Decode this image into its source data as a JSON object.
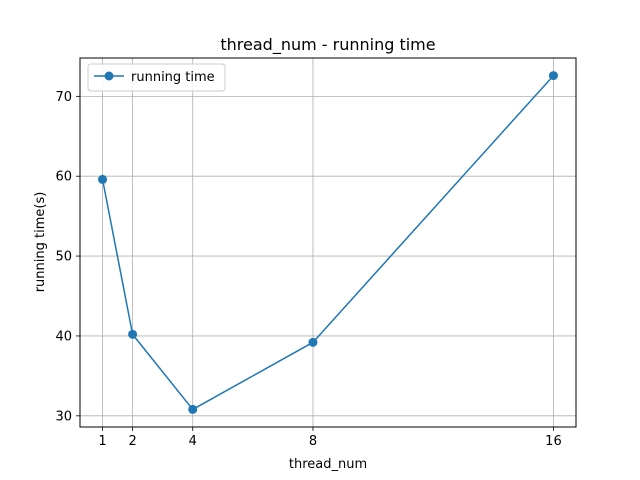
{
  "chart_data": {
    "type": "line",
    "title": "thread_num - running time",
    "xlabel": "thread_num",
    "ylabel": "running time(s)",
    "x": [
      1,
      2,
      4,
      8,
      16
    ],
    "xticks": [
      "1",
      "2",
      "4",
      "8",
      "16"
    ],
    "yticks": [
      30,
      40,
      50,
      60,
      70
    ],
    "xlim": [
      0.25,
      16.75
    ],
    "ylim": [
      28.6,
      74.8
    ],
    "grid": true,
    "legend_position": "top-left",
    "series": [
      {
        "name": "running time",
        "values": [
          59.6,
          40.2,
          30.8,
          39.2,
          72.6
        ],
        "color": "#1f77b4",
        "marker": "circle"
      }
    ]
  }
}
